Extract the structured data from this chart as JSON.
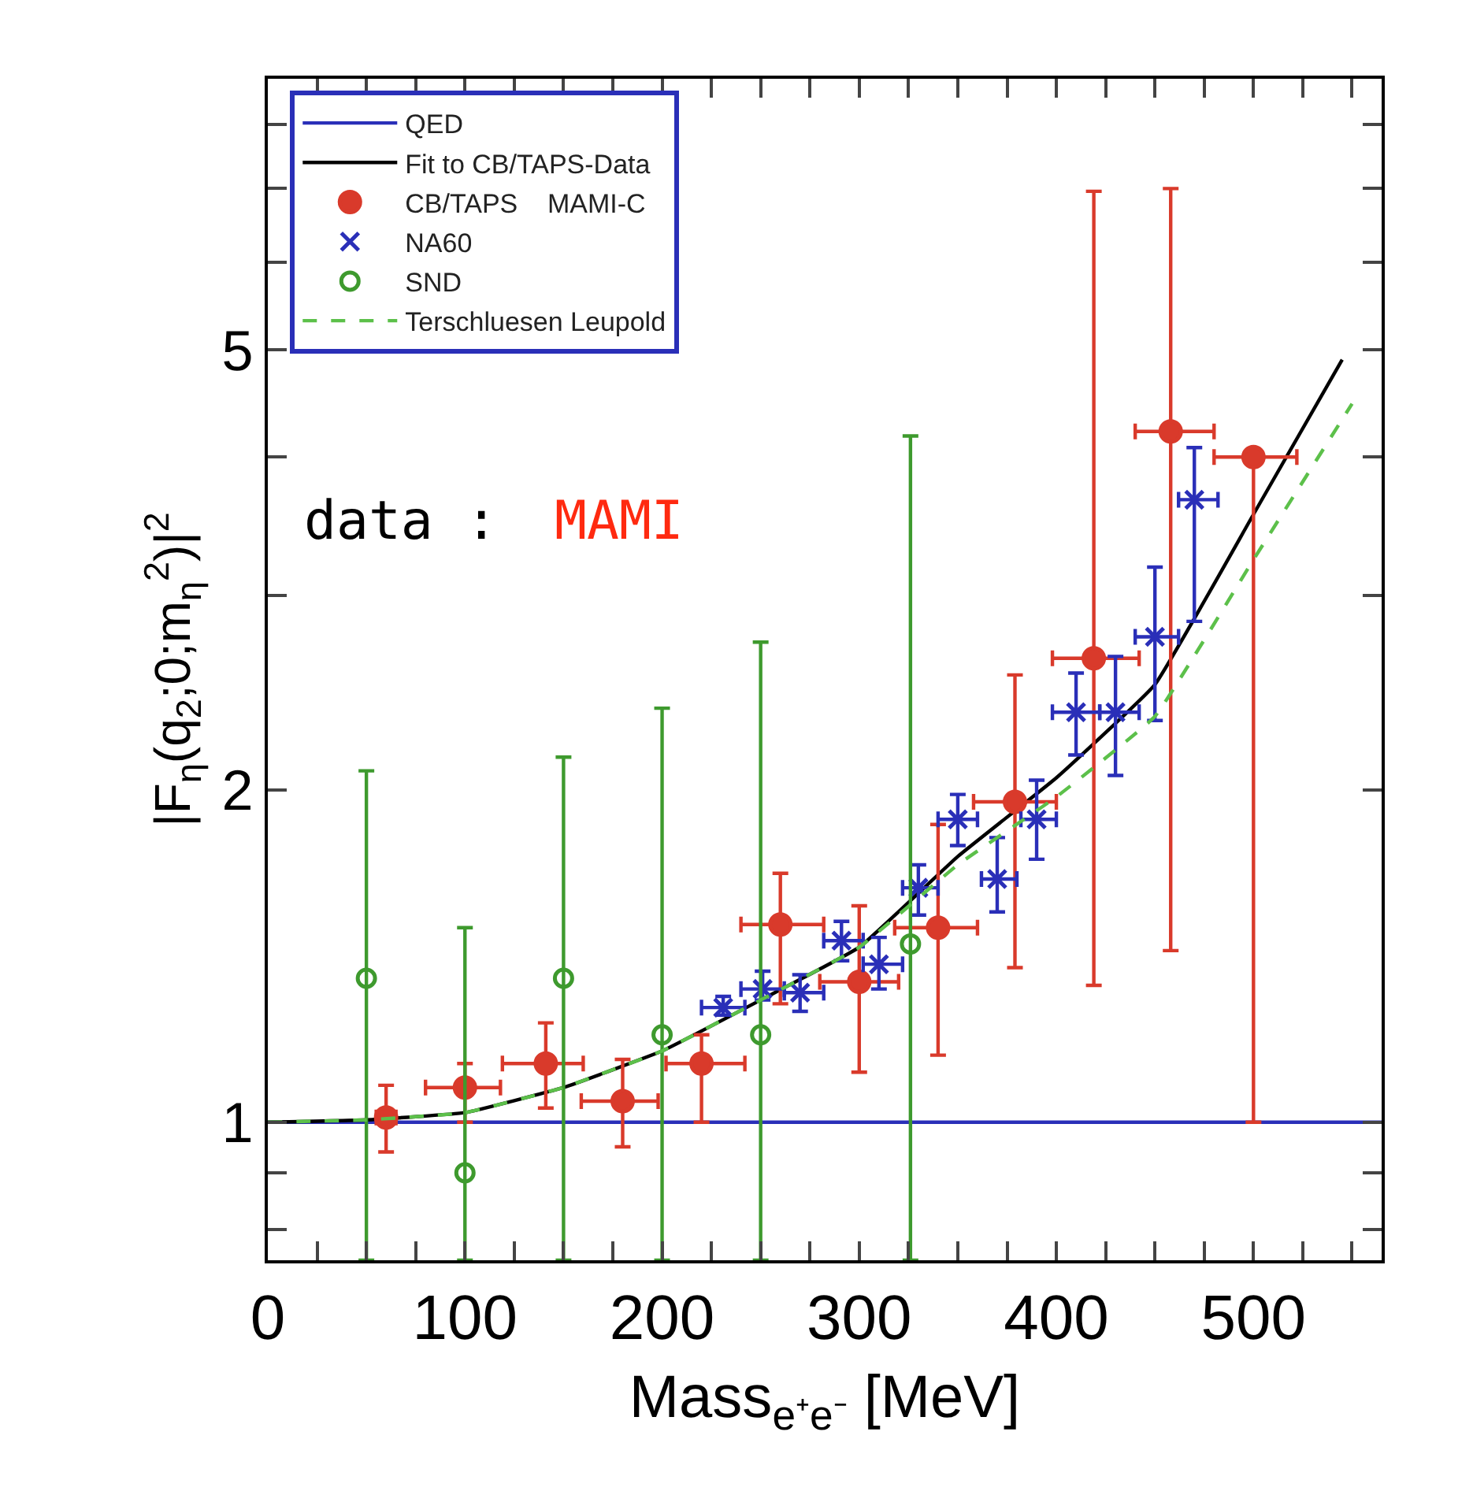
{
  "chart_data": {
    "type": "scatter",
    "xlabel": "Mass$_{e⁺e⁻}$ [MeV]",
    "ylabel": "|F$_{η}$(q$_{2}$;0;m$_{η}$$^{2}$)|$^{2}$",
    "annotations": [
      "data :",
      "MAMI"
    ],
    "log": "y",
    "legend": "top left",
    "xlim": [
      0,
      565
    ],
    "xticks": [
      0,
      {
        "value": 25,
        "label": null
      },
      100,
      {
        "value": 50,
        "label": null
      },
      {
        "value": 75,
        "label": null
      },
      {
        "value": 125,
        "label": null
      },
      {
        "value": 150,
        "label": null
      },
      {
        "value": 175,
        "label": null
      },
      200,
      {
        "value": 225,
        "label": null
      },
      {
        "value": 250,
        "label": null
      },
      {
        "value": 275,
        "label": null
      },
      300,
      {
        "value": 325,
        "label": null
      },
      {
        "value": 350,
        "label": null
      },
      {
        "value": 375,
        "label": null
      },
      400,
      {
        "value": 425,
        "label": null
      },
      {
        "value": 450,
        "label": null
      },
      {
        "value": 475,
        "label": null
      },
      500,
      {
        "value": 525,
        "label": null
      },
      {
        "value": 550,
        "label": null
      }
    ],
    "ylim": [
      0.75,
      8.8
    ],
    "yticks": [
      {
        "value": 0.8,
        "label": null
      },
      {
        "value": 0.9,
        "label": null
      },
      1,
      2,
      {
        "value": 3,
        "label": null
      },
      {
        "value": 4,
        "label": null
      },
      5,
      {
        "value": 6,
        "label": null
      },
      {
        "value": 7,
        "label": null
      },
      {
        "value": 8,
        "label": null
      }
    ],
    "series": [
      {
        "name": "QED",
        "type": "line",
        "color": "#2a2fb8",
        "marker": "none",
        "line_style": "solid",
        "x": [
          0,
          565
        ],
        "values": [
          1,
          1
        ]
      },
      {
        "name": "Fit to CB/TAPS-Data",
        "type": "line",
        "color": "#000000",
        "marker": "none",
        "line_style": "solid",
        "x": [
          0,
          50,
          100,
          150,
          200,
          250,
          300,
          350,
          400,
          450,
          500,
          545
        ],
        "values": [
          1.0,
          1.005,
          1.02,
          1.075,
          1.16,
          1.29,
          1.44,
          1.74,
          2.05,
          2.49,
          3.55,
          4.9
        ]
      },
      {
        "name": "CB/TAPS    MAMI-C",
        "color": "#d93a2b",
        "marker": "circle",
        "x": [
          60,
          100,
          141,
          180,
          220,
          260,
          300,
          340,
          379,
          419,
          458,
          500
        ],
        "values": [
          1.01,
          1.075,
          1.13,
          1.045,
          1.13,
          1.51,
          1.34,
          1.5,
          1.95,
          2.63,
          4.22,
          4.0
        ],
        "errors": [
          [
            0.94,
            1.08
          ],
          [
            1.0,
            1.13
          ],
          [
            1.03,
            1.23
          ],
          [
            0.95,
            1.14
          ],
          [
            1.0,
            1.2
          ],
          [
            1.28,
            1.68
          ],
          [
            1.11,
            1.57
          ],
          [
            1.15,
            1.86
          ],
          [
            1.38,
            2.54
          ],
          [
            1.33,
            6.96
          ],
          [
            1.43,
            7.0
          ],
          [
            1.0,
            4.0
          ]
        ],
        "xerrors": [
          [
            55,
            65
          ],
          [
            80,
            118
          ],
          [
            119,
            160
          ],
          [
            159,
            198
          ],
          [
            202,
            242
          ],
          [
            240,
            282
          ],
          [
            280,
            320
          ],
          [
            318,
            360
          ],
          [
            358,
            400
          ],
          [
            398,
            442
          ],
          [
            440,
            480
          ],
          [
            480,
            522
          ]
        ]
      },
      {
        "name": "NA60",
        "color": "#2a2fb8",
        "marker": "cross",
        "x": [
          231,
          251,
          270,
          291,
          310,
          330,
          350,
          370,
          390,
          410,
          430,
          450,
          470
        ],
        "values": [
          1.27,
          1.32,
          1.31,
          1.46,
          1.39,
          1.63,
          1.88,
          1.66,
          1.88,
          2.35,
          2.35,
          2.75,
          3.66
        ],
        "errors": [
          [
            1.25,
            1.3
          ],
          [
            1.29,
            1.37
          ],
          [
            1.26,
            1.36
          ],
          [
            1.4,
            1.52
          ],
          [
            1.32,
            1.47
          ],
          [
            1.54,
            1.71
          ],
          [
            1.78,
            1.98
          ],
          [
            1.55,
            1.81
          ],
          [
            1.73,
            2.04
          ],
          [
            2.15,
            2.55
          ],
          [
            2.06,
            2.64
          ],
          [
            2.31,
            3.18
          ],
          [
            2.84,
            4.08
          ]
        ],
        "xerrors": [
          [
            220,
            242
          ],
          [
            240,
            262
          ],
          [
            262,
            282
          ],
          [
            282,
            302
          ],
          [
            302,
            322
          ],
          [
            322,
            340
          ],
          [
            340,
            360
          ],
          [
            362,
            380
          ],
          [
            382,
            400
          ],
          [
            398,
            422
          ],
          [
            422,
            442
          ],
          [
            440,
            462
          ],
          [
            462,
            482
          ]
        ]
      },
      {
        "name": "SND",
        "color": "#3e9a2e",
        "marker": "circle-open",
        "x": [
          50,
          100,
          150,
          200,
          250,
          326
        ],
        "values": [
          1.35,
          0.9,
          1.35,
          1.2,
          1.2,
          1.45
        ],
        "errors": [
          [
            0.75,
            2.08
          ],
          [
            0.75,
            1.5
          ],
          [
            0.75,
            2.14
          ],
          [
            0.75,
            2.37
          ],
          [
            0.75,
            2.72
          ],
          [
            0.75,
            4.18
          ]
        ]
      },
      {
        "name": "Terschluesen Leupold",
        "type": "line",
        "color": "#5cc04a",
        "marker": "none",
        "line_style": "dashed",
        "x": [
          0,
          50,
          100,
          150,
          200,
          250,
          300,
          350,
          400,
          450,
          500,
          550
        ],
        "values": [
          1.0,
          1.005,
          1.02,
          1.075,
          1.16,
          1.29,
          1.44,
          1.71,
          1.97,
          2.33,
          3.23,
          4.47
        ]
      }
    ]
  }
}
